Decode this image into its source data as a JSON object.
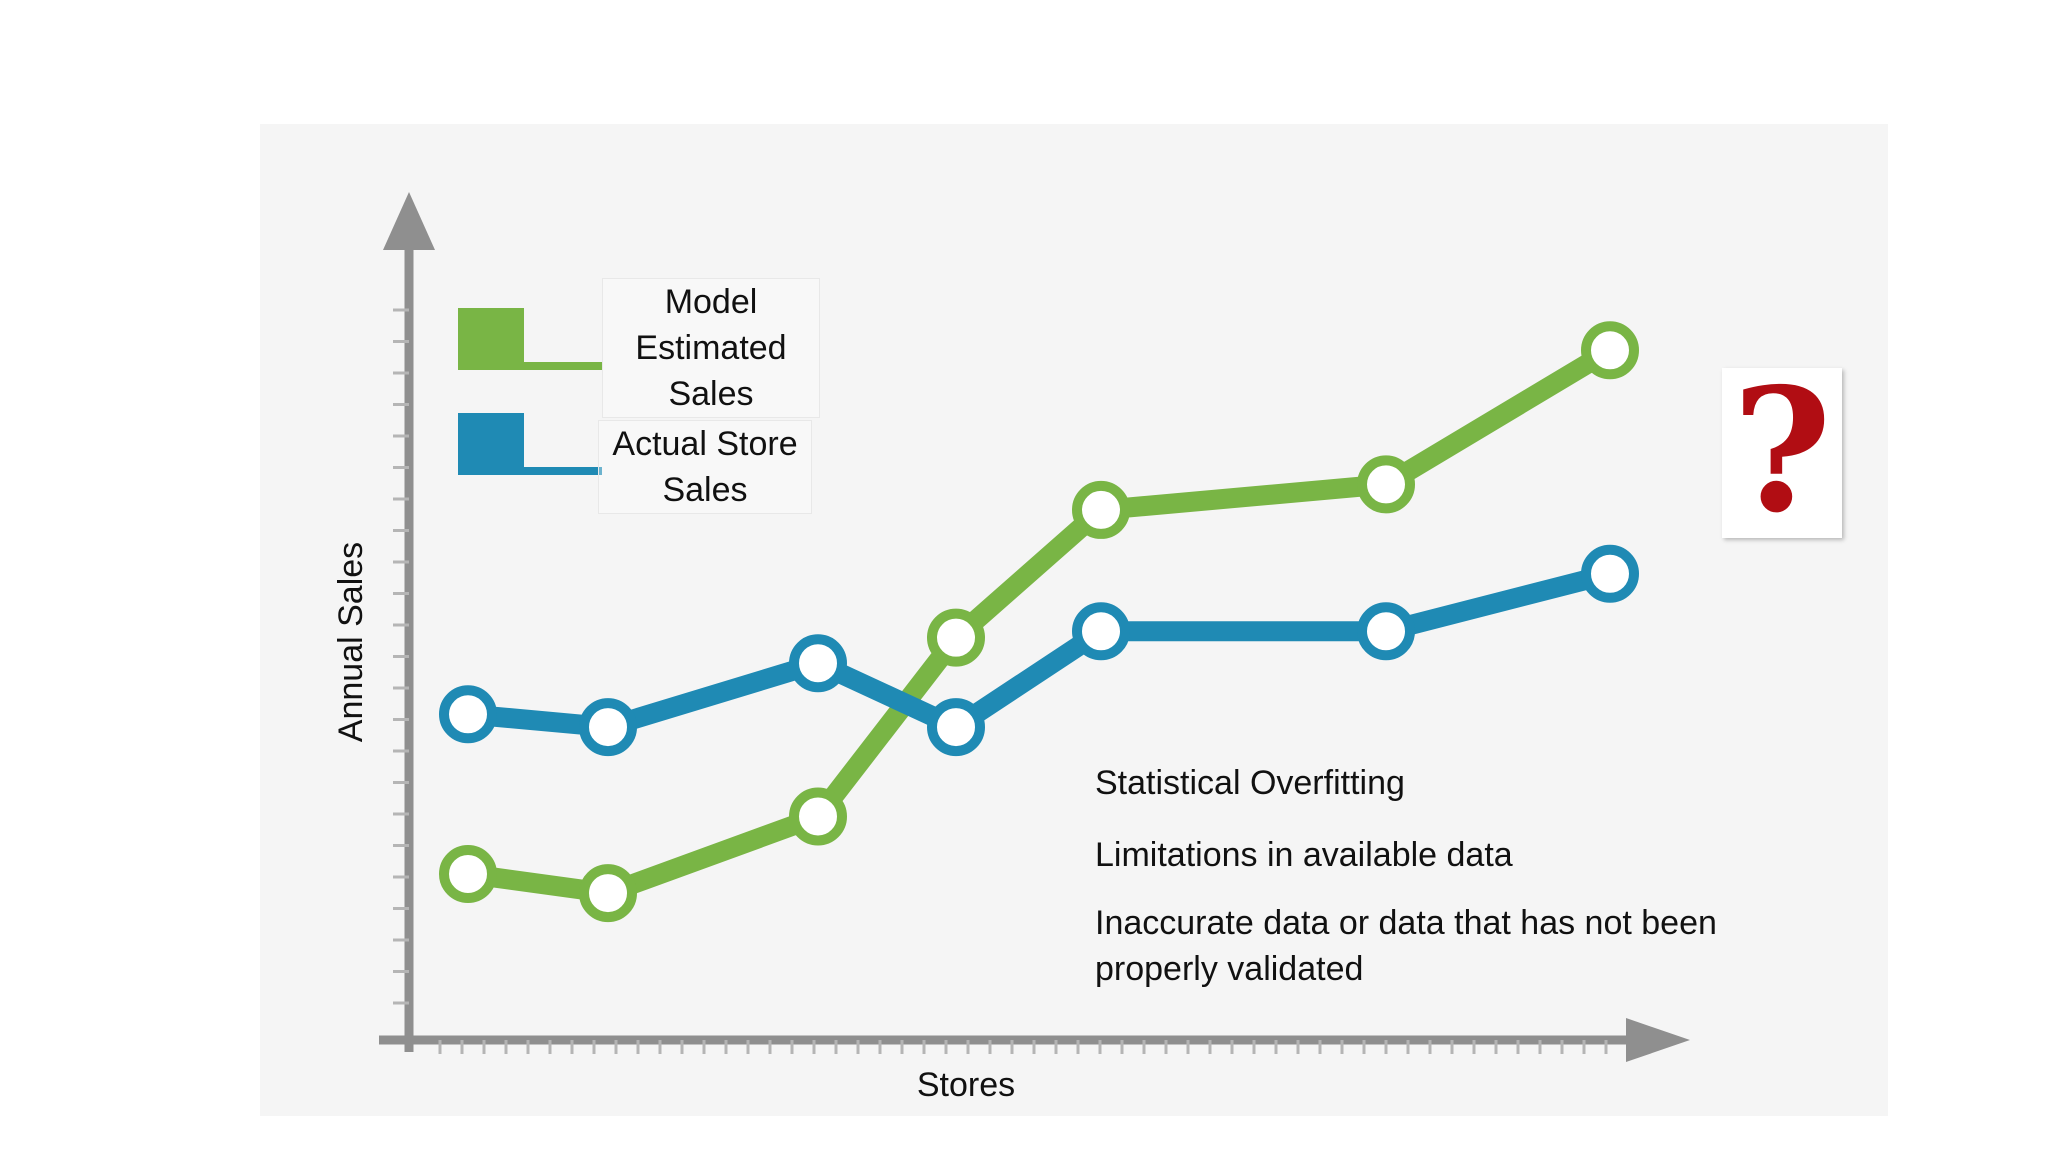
{
  "chart_data": {
    "type": "line",
    "title": "",
    "xlabel": "Stores",
    "ylabel": "Annual Sales",
    "x": [
      1,
      2,
      3,
      4,
      5,
      6,
      7
    ],
    "series": [
      {
        "name": "Model Estimated Sales",
        "color": "#79b545",
        "values": [
          7,
          4,
          16,
          44,
          64,
          68,
          89
        ]
      },
      {
        "name": "Actual Store Sales",
        "color": "#1f8ab4",
        "values": [
          32,
          30,
          40,
          30,
          45,
          45,
          54
        ]
      }
    ],
    "xlim": [
      0.4,
      8.2
    ],
    "ylim": [
      -19,
      113
    ],
    "grid": false,
    "legend": "top-left",
    "notes": [
      "Statistical Overfitting",
      "Limitations in available data",
      "Inaccurate data or data that has not been properly validated"
    ],
    "question_mark": "?"
  }
}
